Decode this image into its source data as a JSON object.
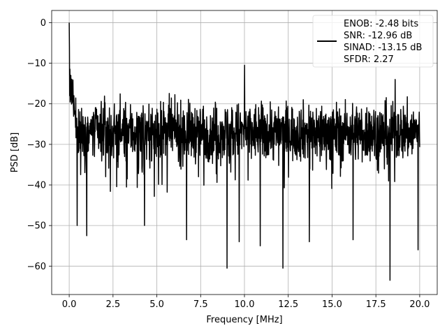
{
  "chart_data": {
    "type": "line",
    "title": "",
    "xlabel": "Frequency [MHz]",
    "ylabel": "PSD [dB]",
    "xlim": [
      -1.0,
      21.0
    ],
    "ylim": [
      -67.0,
      3.0
    ],
    "xticks": [
      0.0,
      2.5,
      5.0,
      7.5,
      10.0,
      12.5,
      15.0,
      17.5,
      20.0
    ],
    "xtick_labels": [
      "0.0",
      "2.5",
      "5.0",
      "7.5",
      "10.0",
      "12.5",
      "15.0",
      "17.5",
      "20.0"
    ],
    "yticks": [
      0,
      -10,
      -20,
      -30,
      -40,
      -50,
      -60
    ],
    "ytick_labels": [
      "0",
      "−10",
      "−20",
      "−30",
      "−40",
      "−50",
      "−60"
    ],
    "grid": true,
    "legend_position": "top-right",
    "series": [
      {
        "color": "#000000",
        "x_range": [
          0.0,
          20.0
        ],
        "num_points": 1500,
        "envelope": {
          "typical_range_db": [
            -38,
            -16
          ],
          "peak_at_dc_db": 0,
          "deep_notches": [
            {
              "x": 0.45,
              "y": -50
            },
            {
              "x": 1.0,
              "y": -52.5
            },
            {
              "x": 4.3,
              "y": -50
            },
            {
              "x": 6.7,
              "y": -53.5
            },
            {
              "x": 9.0,
              "y": -60.5
            },
            {
              "x": 9.7,
              "y": -54
            },
            {
              "x": 10.9,
              "y": -55
            },
            {
              "x": 12.2,
              "y": -60.5
            },
            {
              "x": 13.7,
              "y": -54
            },
            {
              "x": 16.2,
              "y": -53.5
            },
            {
              "x": 18.3,
              "y": -63.5
            },
            {
              "x": 19.9,
              "y": -56
            }
          ],
          "tall_spikes": [
            {
              "x": 10.0,
              "y": -10.5
            },
            {
              "x": 18.6,
              "y": -14
            }
          ]
        }
      }
    ],
    "legend": {
      "lines": [
        "ENOB: -2.48 bits",
        "SNR: -12.96 dB",
        "SINAD: -13.15 dB",
        "SFDR: 2.27"
      ]
    }
  }
}
